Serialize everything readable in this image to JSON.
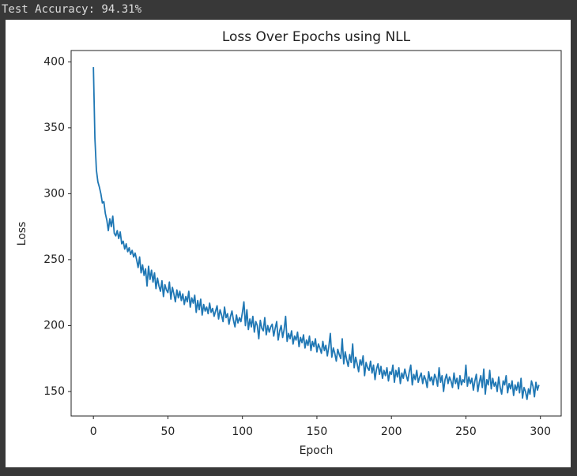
{
  "output": {
    "text": "Test Accuracy: 94.31%"
  },
  "chart_data": {
    "type": "line",
    "title": "Loss Over Epochs using NLL",
    "x_label": "Epoch",
    "y_label": "Loss",
    "x": [
      0,
      1,
      2,
      3,
      4,
      5,
      6,
      7,
      8,
      9,
      10,
      11,
      12,
      13,
      14,
      15,
      16,
      17,
      18,
      19,
      20,
      21,
      22,
      23,
      24,
      25,
      26,
      27,
      28,
      29,
      30,
      31,
      32,
      33,
      34,
      35,
      36,
      37,
      38,
      39,
      40,
      41,
      42,
      43,
      44,
      45,
      46,
      47,
      48,
      49,
      50,
      51,
      52,
      53,
      54,
      55,
      56,
      57,
      58,
      59,
      60,
      61,
      62,
      63,
      64,
      65,
      66,
      67,
      68,
      69,
      70,
      71,
      72,
      73,
      74,
      75,
      76,
      77,
      78,
      79,
      80,
      81,
      82,
      83,
      84,
      85,
      86,
      87,
      88,
      89,
      90,
      91,
      92,
      93,
      94,
      95,
      96,
      97,
      98,
      99,
      100,
      101,
      102,
      103,
      104,
      105,
      106,
      107,
      108,
      109,
      110,
      111,
      112,
      113,
      114,
      115,
      116,
      117,
      118,
      119,
      120,
      121,
      122,
      123,
      124,
      125,
      126,
      127,
      128,
      129,
      130,
      131,
      132,
      133,
      134,
      135,
      136,
      137,
      138,
      139,
      140,
      141,
      142,
      143,
      144,
      145,
      146,
      147,
      148,
      149,
      150,
      151,
      152,
      153,
      154,
      155,
      156,
      157,
      158,
      159,
      160,
      161,
      162,
      163,
      164,
      165,
      166,
      167,
      168,
      169,
      170,
      171,
      172,
      173,
      174,
      175,
      176,
      177,
      178,
      179,
      180,
      181,
      182,
      183,
      184,
      185,
      186,
      187,
      188,
      189,
      190,
      191,
      192,
      193,
      194,
      195,
      196,
      197,
      198,
      199,
      200,
      201,
      202,
      203,
      204,
      205,
      206,
      207,
      208,
      209,
      210,
      211,
      212,
      213,
      214,
      215,
      216,
      217,
      218,
      219,
      220,
      221,
      222,
      223,
      224,
      225,
      226,
      227,
      228,
      229,
      230,
      231,
      232,
      233,
      234,
      235,
      236,
      237,
      238,
      239,
      240,
      241,
      242,
      243,
      244,
      245,
      246,
      247,
      248,
      249,
      250,
      251,
      252,
      253,
      254,
      255,
      256,
      257,
      258,
      259,
      260,
      261,
      262,
      263,
      264,
      265,
      266,
      267,
      268,
      269,
      270,
      271,
      272,
      273,
      274,
      275,
      276,
      277,
      278,
      279,
      280,
      281,
      282,
      283,
      284,
      285,
      286,
      287,
      288,
      289,
      290,
      291,
      292,
      293,
      294,
      295,
      296,
      297,
      298,
      299
    ],
    "series": [
      {
        "color": "#1f77b4",
        "values": [
          396,
          342,
          318,
          309,
          305,
          300,
          293,
          294,
          285,
          280,
          272,
          281,
          275,
          283,
          270,
          268,
          272,
          266,
          271,
          262,
          264,
          258,
          262,
          256,
          259,
          254,
          257,
          252,
          255,
          250,
          244,
          252,
          240,
          246,
          238,
          243,
          230,
          245,
          235,
          242,
          233,
          240,
          228,
          236,
          230,
          226,
          234,
          222,
          231,
          227,
          225,
          233,
          220,
          229,
          224,
          218,
          227,
          221,
          226,
          219,
          224,
          216,
          222,
          218,
          226,
          214,
          221,
          217,
          223,
          210,
          219,
          212,
          220,
          208,
          216,
          211,
          214,
          209,
          217,
          210,
          213,
          207,
          211,
          215,
          205,
          212,
          208,
          203,
          214,
          206,
          209,
          201,
          207,
          211,
          204,
          199,
          208,
          202,
          206,
          203,
          210,
          218,
          200,
          212,
          197,
          205,
          199,
          207,
          195,
          203,
          200,
          190,
          204,
          198,
          196,
          206,
          193,
          200,
          195,
          199,
          201,
          192,
          198,
          203,
          189,
          196,
          200,
          191,
          197,
          207,
          188,
          194,
          190,
          196,
          186,
          192,
          189,
          195,
          184,
          191,
          187,
          193,
          183,
          189,
          185,
          192,
          181,
          188,
          184,
          190,
          180,
          186,
          183,
          179,
          188,
          181,
          185,
          177,
          184,
          194,
          176,
          183,
          179,
          173,
          182,
          178,
          175,
          190,
          171,
          180,
          174,
          169,
          178,
          172,
          186,
          168,
          176,
          171,
          165,
          174,
          170,
          177,
          162,
          172,
          168,
          166,
          173,
          164,
          170,
          159,
          167,
          171,
          163,
          169,
          160,
          166,
          162,
          168,
          158,
          165,
          163,
          170,
          157,
          166,
          161,
          168,
          156,
          164,
          160,
          167,
          162,
          158,
          165,
          170,
          155,
          163,
          159,
          166,
          157,
          161,
          164,
          156,
          162,
          159,
          153,
          165,
          158,
          161,
          155,
          163,
          160,
          154,
          168,
          157,
          162,
          150,
          159,
          163,
          156,
          161,
          158,
          153,
          164,
          156,
          160,
          152,
          162,
          155,
          159,
          157,
          170,
          154,
          161,
          156,
          160,
          151,
          158,
          163,
          150,
          157,
          162,
          153,
          167,
          148,
          159,
          155,
          166,
          152,
          160,
          154,
          157,
          150,
          161,
          153,
          148,
          158,
          155,
          162,
          149,
          156,
          152,
          158,
          147,
          155,
          151,
          157,
          149,
          160,
          145,
          153,
          150,
          144,
          152,
          148,
          158,
          154,
          146,
          157,
          151,
          155
        ]
      }
    ],
    "xlim": [
      -14.95,
      313.95
    ],
    "xticks": [
      0,
      50,
      100,
      150,
      200,
      250,
      300
    ],
    "ylim": [
      131.4,
      408.6
    ],
    "yticks": [
      150,
      200,
      250,
      300,
      350,
      400
    ],
    "grid": false
  }
}
